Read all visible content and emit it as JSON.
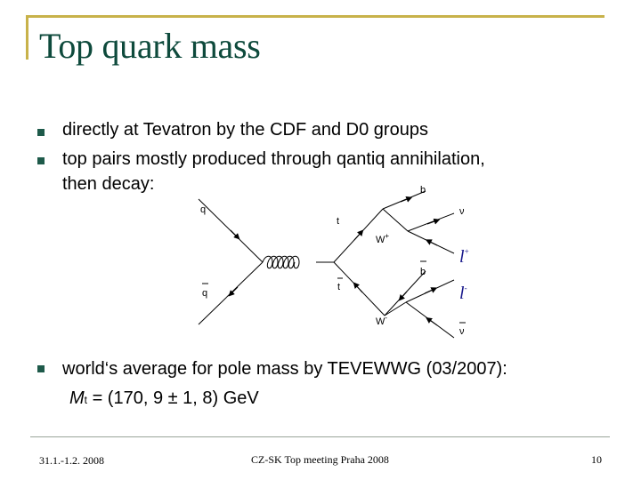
{
  "slide": {
    "title": "Top quark mass",
    "bullets": [
      {
        "line1": "directly at Tevatron by the CDF and D0 groups"
      },
      {
        "line1": "top pairs mostly produced through qantiq annihilation,",
        "line2": "then decay:"
      },
      {
        "line1": "world‘s average for pole mass by TEVEWWG (03/2007):"
      }
    ],
    "formula": {
      "symbol": "M",
      "subscript": "t",
      "text": " = (170, 9 ± 1, 8) GeV"
    }
  },
  "diagram": {
    "labels": {
      "q": "q",
      "qbar": "q",
      "t": "t",
      "tbar": "t",
      "b_top": "b",
      "b_bot": "b",
      "Wplus": "W",
      "Wplus_sup": "+",
      "Wminus": "W",
      "Wminus_sup": "-",
      "nu": "ν",
      "nubar": "ν",
      "lplus": "l",
      "lplus_sup": "+",
      "lminus": "l",
      "lminus_sup": "-"
    },
    "colors": {
      "lines": "#000000",
      "leptons": "#1a1a8c"
    }
  },
  "footer": {
    "date": "31.1.-1.2. 2008",
    "event": "CZ-SK Top meeting Praha 2008",
    "page": "10"
  },
  "colors": {
    "title": "#0e4a3c",
    "accent_frame": "#c8b24a",
    "bullet": "#1e5a4a"
  }
}
